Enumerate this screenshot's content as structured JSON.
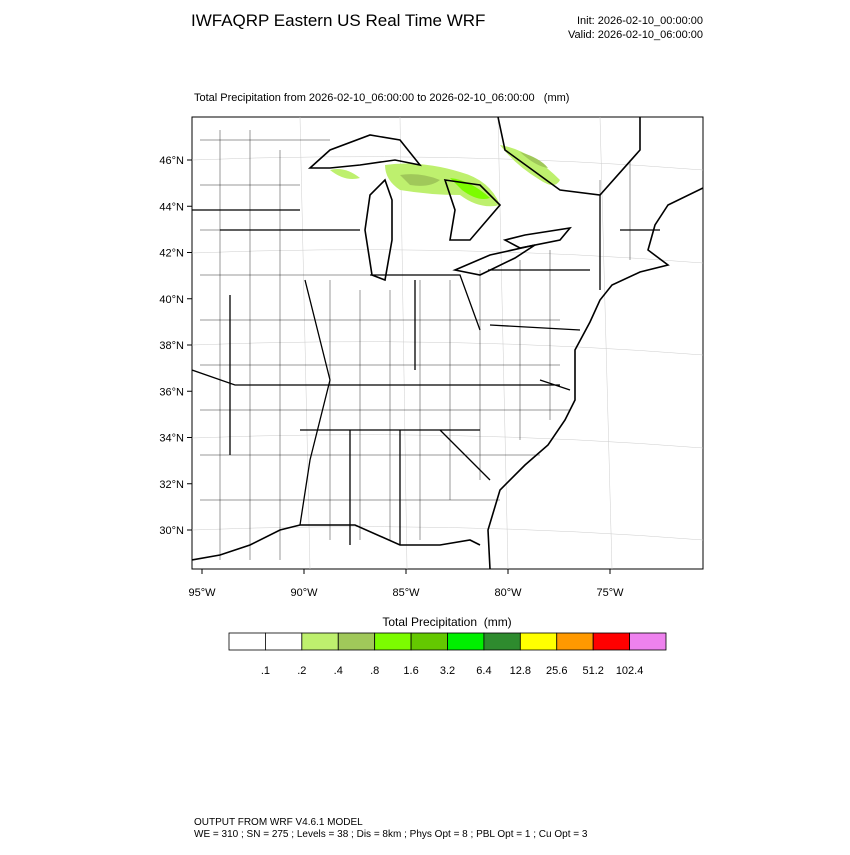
{
  "header": {
    "title": "IWFAQRP Eastern US Real Time WRF",
    "init": "Init: 2026-02-10_00:00:00",
    "valid": "Valid: 2026-02-10_06:00:00"
  },
  "map": {
    "subtitle": "Total Precipitation from 2026-02-10_06:00:00 to 2026-02-10_06:00:00   (mm)",
    "lat_labels": [
      "46°N",
      "44°N",
      "42°N",
      "40°N",
      "38°N",
      "36°N",
      "34°N",
      "32°N",
      "30°N"
    ],
    "lon_labels": [
      "95°W",
      "90°W",
      "85°W",
      "80°W",
      "75°W"
    ]
  },
  "colorbar": {
    "title": "Total Precipitation  (mm)",
    "colors": [
      "#ffffff",
      "#ffffff",
      "#bef06e",
      "#a0c85a",
      "#7cfc00",
      "#64c800",
      "#00f000",
      "#2e8b2e",
      "#ffff00",
      "#ff9900",
      "#ff0000",
      "#ee82ee"
    ],
    "labels": [
      ".1",
      ".2",
      ".4",
      ".8",
      "1.6",
      "3.2",
      "6.4",
      "12.8",
      "25.6",
      "51.2",
      "102.4"
    ]
  },
  "footer": {
    "line1": "OUTPUT FROM WRF V4.6.1 MODEL",
    "line2": "WE = 310 ; SN = 275 ; Levels = 38 ; Dis = 8km ; Phys Opt = 8 ; PBL Opt = 1 ; Cu Opt = 3"
  }
}
